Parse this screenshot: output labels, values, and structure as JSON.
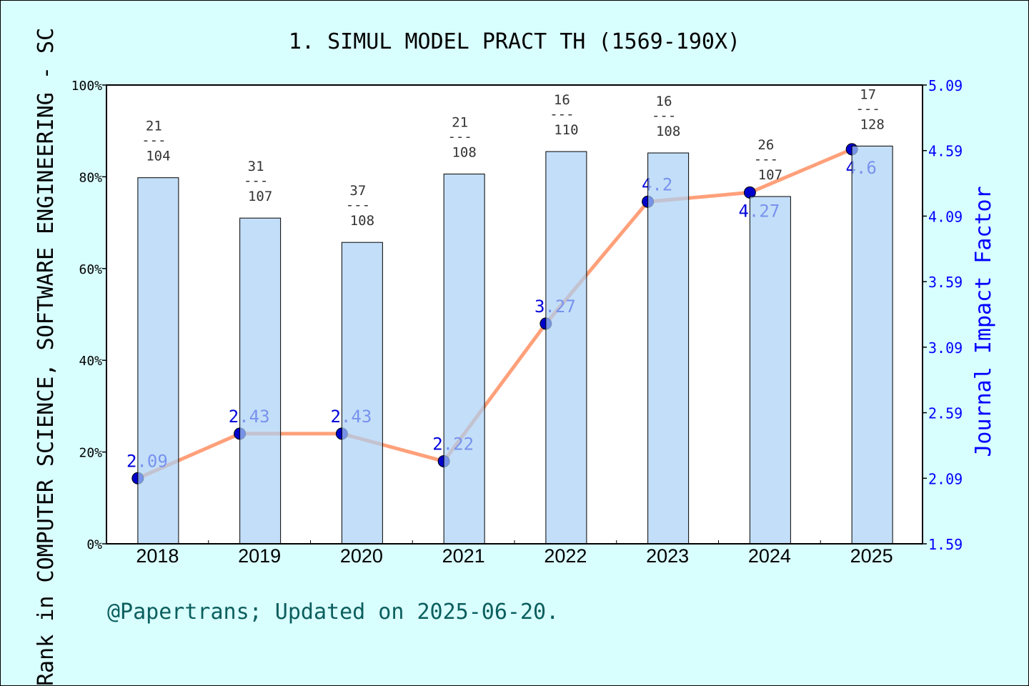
{
  "chart_data": {
    "type": "bar+line",
    "title": "1. SIMUL MODEL PRACT TH (1569-190X)",
    "ylabel_left": "Rank in COMPUTER SCIENCE, SOFTWARE ENGINEERING - SC",
    "ylabel_right": "Journal Impact Factor",
    "categories": [
      "2018",
      "2019",
      "2020",
      "2021",
      "2022",
      "2023",
      "2024",
      "2025"
    ],
    "left_axis": {
      "ylim": [
        0,
        100
      ],
      "ticks": [
        "0%",
        "20%",
        "40%",
        "60%",
        "80%",
        "100%"
      ]
    },
    "right_axis": {
      "ylim": [
        1.59,
        5.09
      ],
      "ticks": [
        "1.59",
        "2.09",
        "2.59",
        "3.09",
        "3.59",
        "4.09",
        "4.59",
        "5.09"
      ]
    },
    "bars": {
      "rank": [
        21,
        31,
        37,
        21,
        16,
        16,
        26,
        17
      ],
      "total": [
        104,
        107,
        108,
        108,
        110,
        108,
        107,
        128
      ],
      "percentile": [
        79.8,
        71.0,
        65.7,
        80.6,
        85.5,
        85.2,
        75.7,
        86.7
      ],
      "color": "#aad0f5"
    },
    "line": {
      "values": [
        2.09,
        2.43,
        2.43,
        2.22,
        3.27,
        4.2,
        4.27,
        4.6
      ],
      "labels": [
        "2.09",
        "2.43",
        "2.43",
        "2.22",
        "3.27",
        "4.2",
        "4.27",
        "4.6"
      ],
      "color": "#ffa07a",
      "marker_color": "#0000cc"
    },
    "grid": false,
    "footer": "@Papertrans; Updated on 2025-06-20."
  }
}
